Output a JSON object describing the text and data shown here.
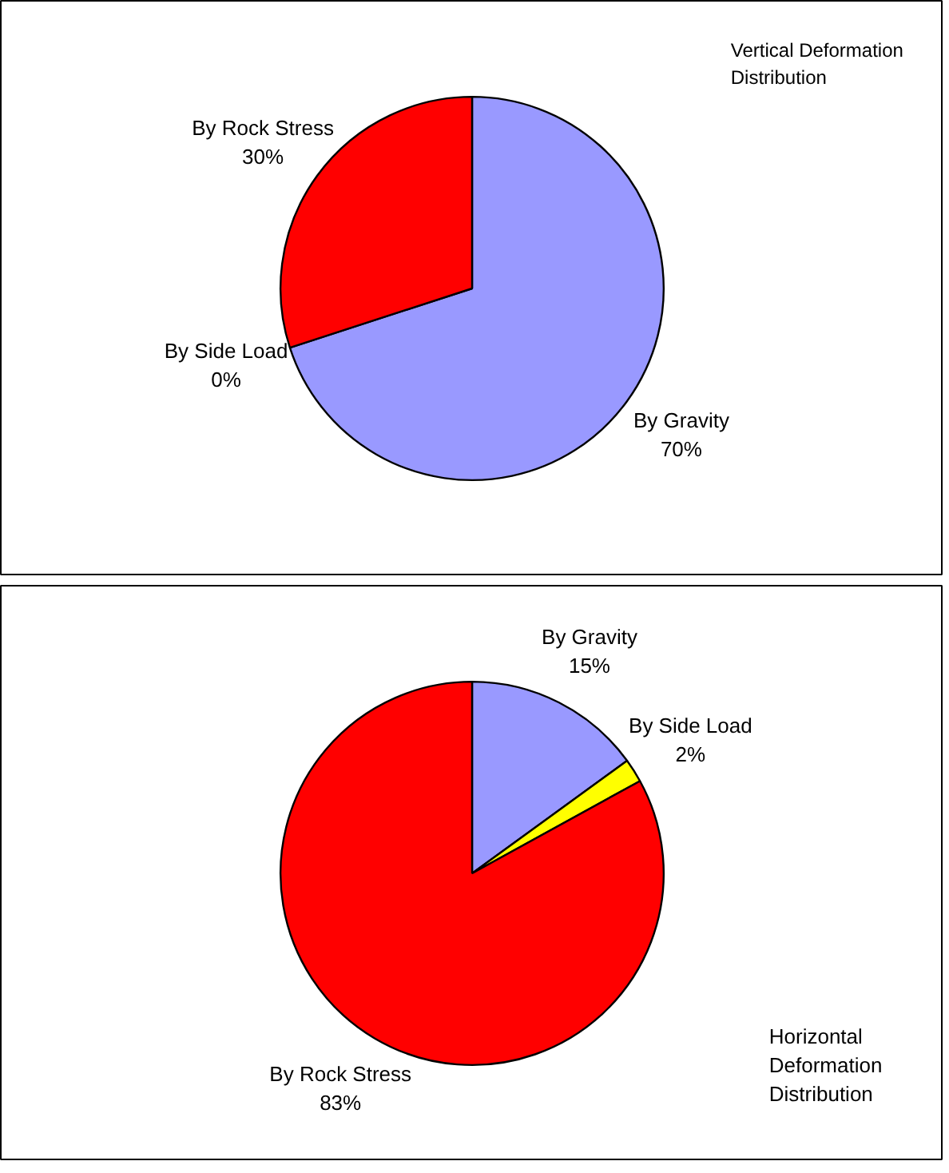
{
  "chart_data": [
    {
      "type": "pie",
      "title": "Vertical Deformation Distribution",
      "categories": [
        "By Gravity",
        "By Side Load",
        "By Rock Stress"
      ],
      "values": [
        70,
        0,
        30
      ],
      "colors": [
        "#9999ff",
        "#ffff00",
        "#ff0000"
      ],
      "value_labels": [
        "70%",
        "0%",
        "30%"
      ]
    },
    {
      "type": "pie",
      "title": "Horizontal Deformation Distribution",
      "categories": [
        "By Gravity",
        "By Side Load",
        "By Rock Stress"
      ],
      "values": [
        15,
        2,
        83
      ],
      "colors": [
        "#9999ff",
        "#ffff00",
        "#ff0000"
      ],
      "value_labels": [
        "15%",
        "2%",
        "83%"
      ]
    }
  ]
}
